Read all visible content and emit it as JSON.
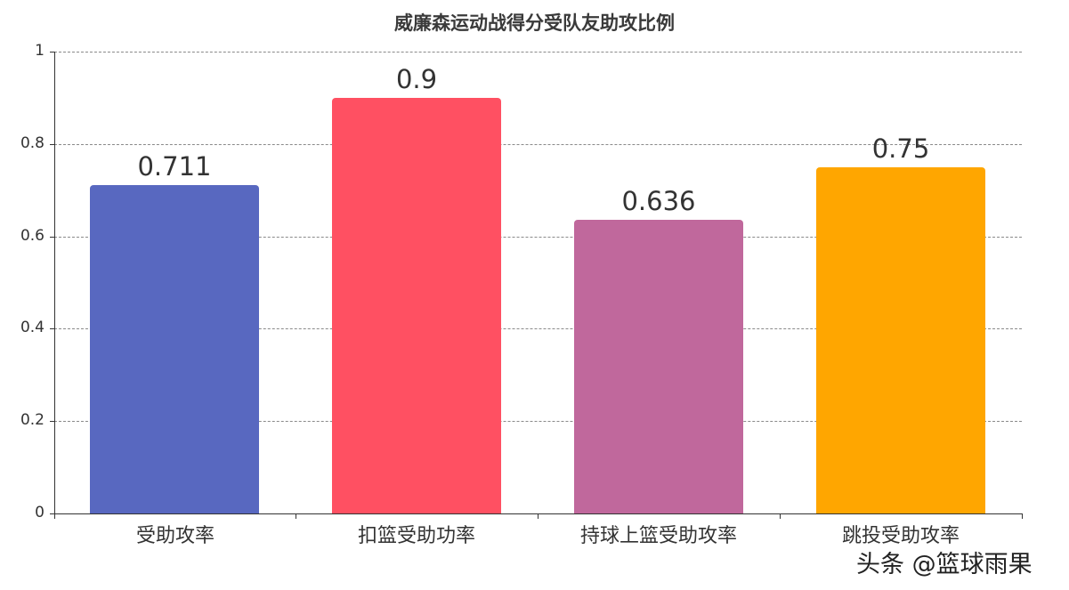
{
  "chart_data": {
    "type": "bar",
    "title": "威廉森运动战得分受队友助攻比例",
    "xlabel": "",
    "ylabel": "",
    "categories": [
      "受助攻率",
      "扣篮受助功率",
      "持球上篮受助攻率",
      "跳投受助攻率"
    ],
    "values": [
      0.711,
      0.9,
      0.636,
      0.75
    ],
    "value_labels": [
      "0.711",
      "0.9",
      "0.636",
      "0.75"
    ],
    "colors": [
      "#5868c0",
      "#ff5062",
      "#c0689c",
      "#ffa600"
    ],
    "ylim": [
      0,
      1
    ],
    "yticks": [
      "0",
      "0.2",
      "0.4",
      "0.6",
      "0.8",
      "1"
    ],
    "grid": "horizontal dashed",
    "legend": "none"
  },
  "watermark": "头条 @篮球雨果"
}
